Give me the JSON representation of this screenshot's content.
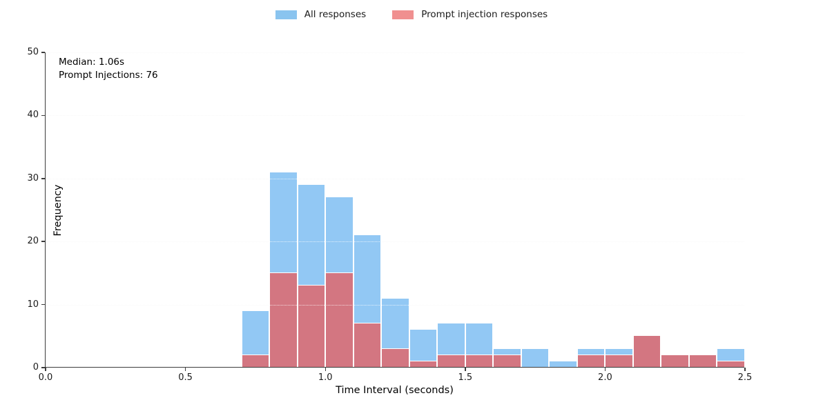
{
  "legend": {
    "items": [
      {
        "label": "All responses",
        "color": "#8ac4ef"
      },
      {
        "label": "Prompt injection responses",
        "color": "#f09090"
      }
    ]
  },
  "annotation": {
    "median_line": "Median: 1.06s",
    "injections_line": "Prompt Injections: 76"
  },
  "axes": {
    "xlabel": "Time Interval (seconds)",
    "ylabel": "Frequency"
  },
  "chart_data": {
    "type": "bar",
    "subtype": "overlaid-histogram",
    "title": "",
    "xlabel": "Time Interval (seconds)",
    "ylabel": "Frequency",
    "xlim": [
      0.0,
      2.5
    ],
    "ylim": [
      0,
      50
    ],
    "x_tick_labels": [
      "0.0",
      "0.5",
      "1.0",
      "1.5",
      "2.0",
      "2.5"
    ],
    "y_tick_labels": [
      "0",
      "10",
      "20",
      "30",
      "40",
      "50"
    ],
    "grid": "horizontal-dotted",
    "legend_position": "top-center",
    "bin_width": 0.1,
    "series": [
      {
        "name": "All responses",
        "bar_color": "#92c8f4",
        "legend_color": "#8ac4ef"
      },
      {
        "name": "Prompt injection responses",
        "bar_color": "#d37681",
        "legend_color": "#f09090"
      }
    ],
    "bins": [
      {
        "range": [
          0.7,
          0.8
        ],
        "all": 9,
        "injections": 2
      },
      {
        "range": [
          0.8,
          0.9
        ],
        "all": 31,
        "injections": 15
      },
      {
        "range": [
          0.9,
          1.0
        ],
        "all": 29,
        "injections": 13
      },
      {
        "range": [
          1.0,
          1.1
        ],
        "all": 27,
        "injections": 15
      },
      {
        "range": [
          1.1,
          1.2
        ],
        "all": 21,
        "injections": 7
      },
      {
        "range": [
          1.2,
          1.3
        ],
        "all": 11,
        "injections": 3
      },
      {
        "range": [
          1.3,
          1.4
        ],
        "all": 6,
        "injections": 1
      },
      {
        "range": [
          1.4,
          1.5
        ],
        "all": 7,
        "injections": 2
      },
      {
        "range": [
          1.5,
          1.6
        ],
        "all": 7,
        "injections": 2
      },
      {
        "range": [
          1.6,
          1.7
        ],
        "all": 3,
        "injections": 2
      },
      {
        "range": [
          1.7,
          1.8
        ],
        "all": 3,
        "injections": 0
      },
      {
        "range": [
          1.8,
          1.9
        ],
        "all": 1,
        "injections": 0
      },
      {
        "range": [
          1.9,
          2.0
        ],
        "all": 3,
        "injections": 2
      },
      {
        "range": [
          2.0,
          2.1
        ],
        "all": 3,
        "injections": 2
      },
      {
        "range": [
          2.1,
          2.2
        ],
        "all": 5,
        "injections": 5
      },
      {
        "range": [
          2.2,
          2.3
        ],
        "all": 2,
        "injections": 2
      },
      {
        "range": [
          2.3,
          2.4
        ],
        "all": 2,
        "injections": 2
      },
      {
        "range": [
          2.4,
          2.5
        ],
        "all": 3,
        "injections": 1
      }
    ],
    "annotations": [
      "Median: 1.06s",
      "Prompt Injections: 76"
    ]
  }
}
